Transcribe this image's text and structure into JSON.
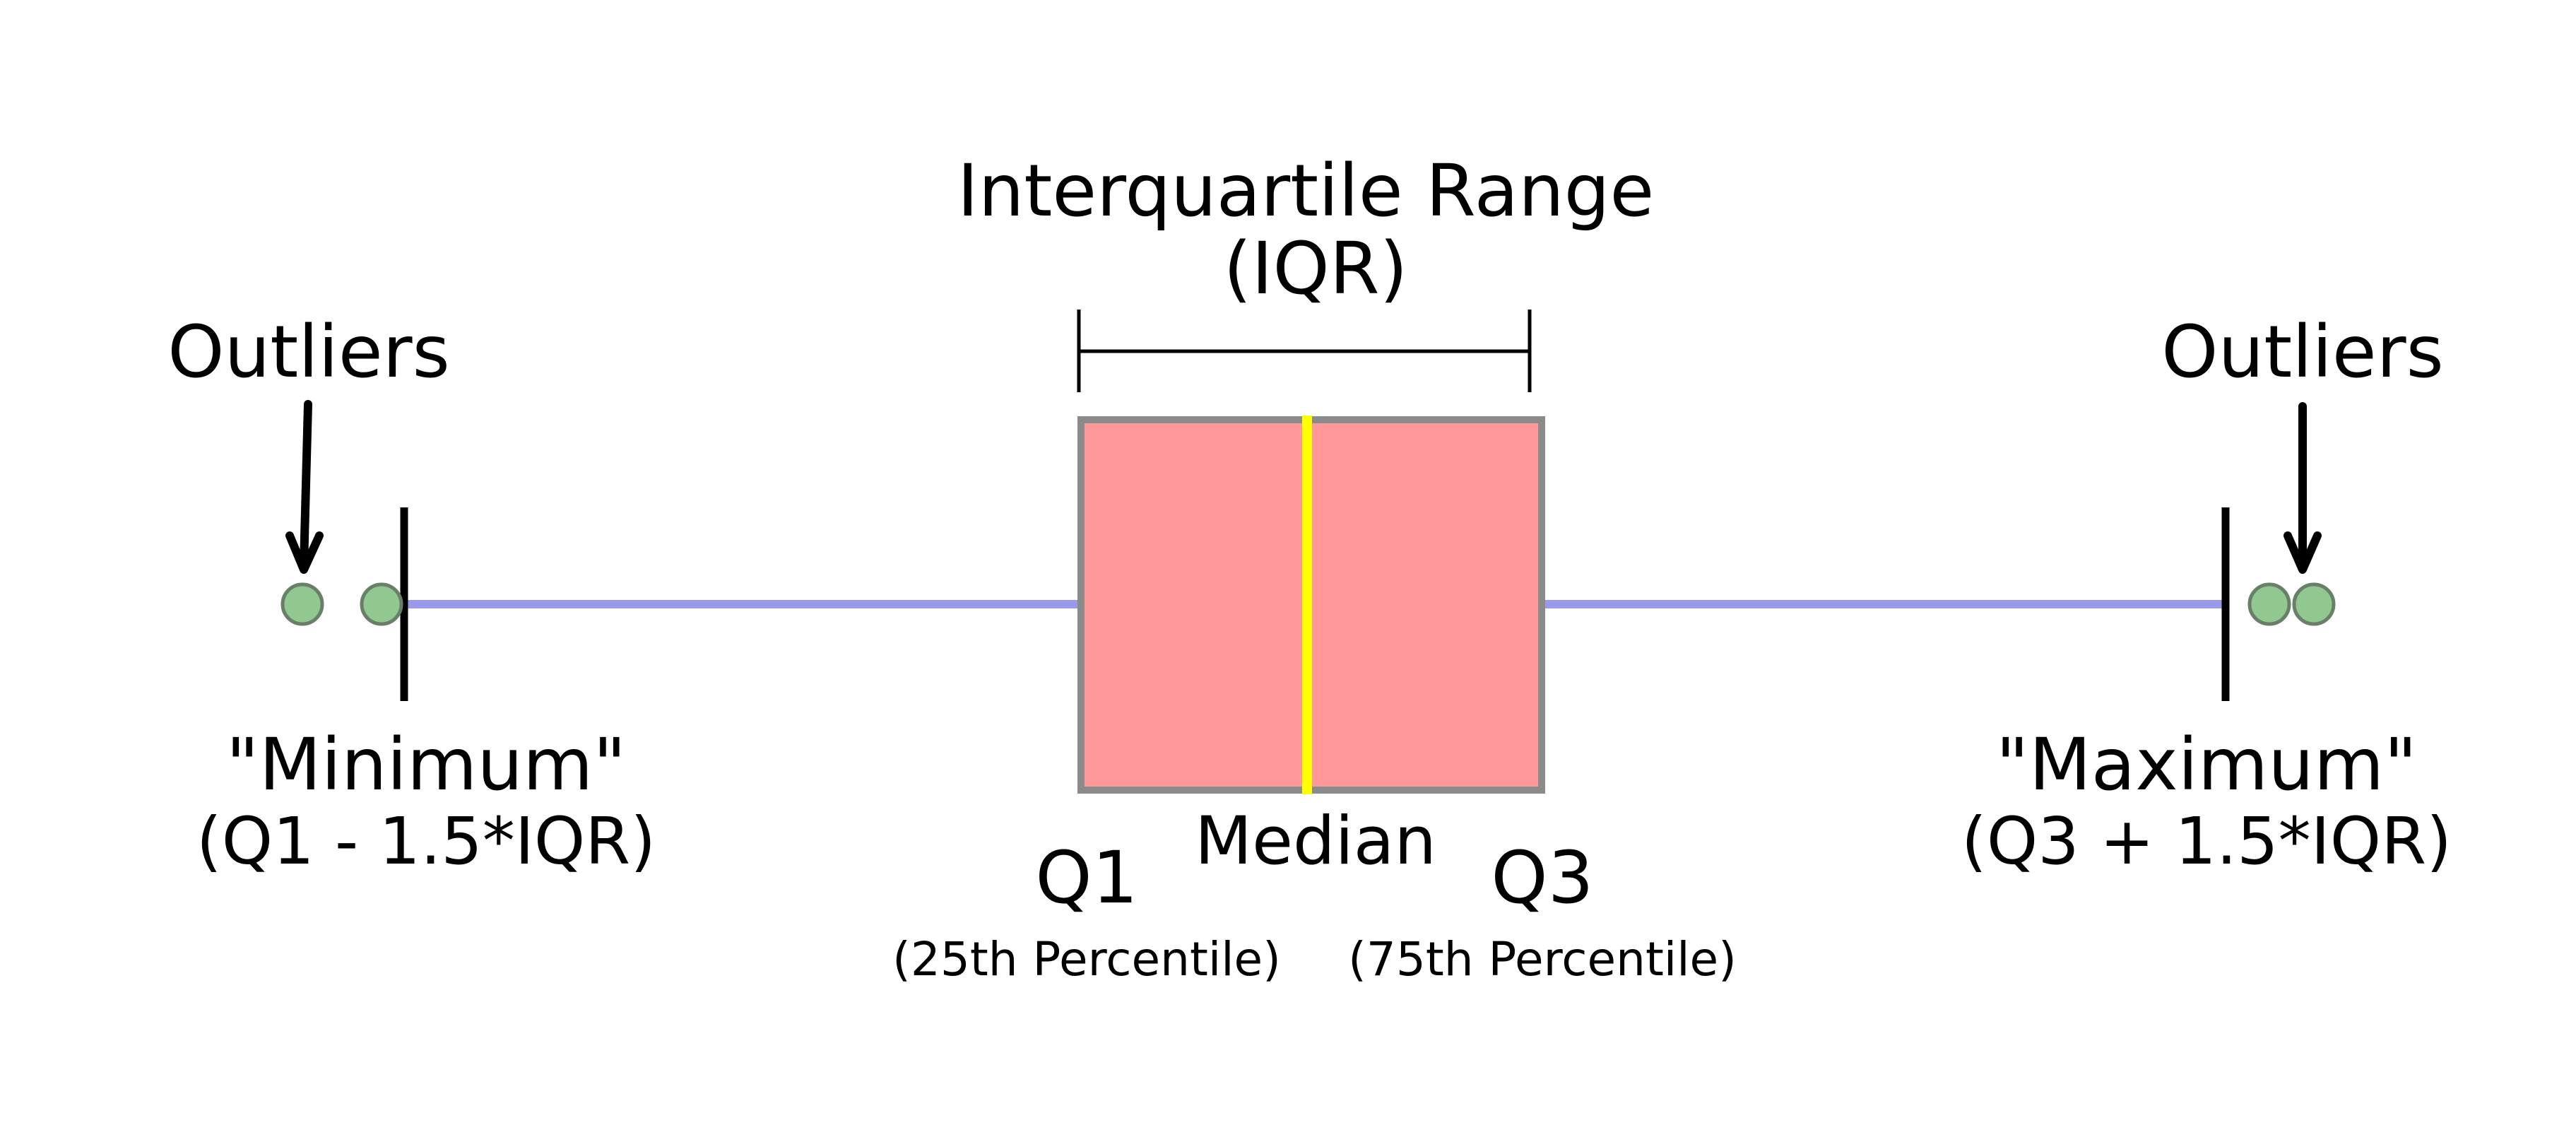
{
  "labels": {
    "iqr_title": "Interquartile Range",
    "iqr_abbrev": "(IQR)",
    "outliers_left": "Outliers",
    "outliers_right": "Outliers",
    "minimum_title": "\"Minimum\"",
    "minimum_formula": "(Q1 - 1.5*IQR)",
    "maximum_title": "\"Maximum\"",
    "maximum_formula": "(Q3 + 1.5*IQR)",
    "q1": "Q1",
    "q1_sub": "(25th Percentile)",
    "median": "Median",
    "q3": "Q3",
    "q3_sub": "(75th Percentile)"
  },
  "colors": {
    "box_fill": "#ff9999",
    "box_stroke": "#8a8a8a",
    "median_line": "#ffff00",
    "whisker": "#9999ee",
    "outlier_fill": "#90c890",
    "outlier_stroke": "#6a7f6a",
    "ink": "#000000"
  }
}
